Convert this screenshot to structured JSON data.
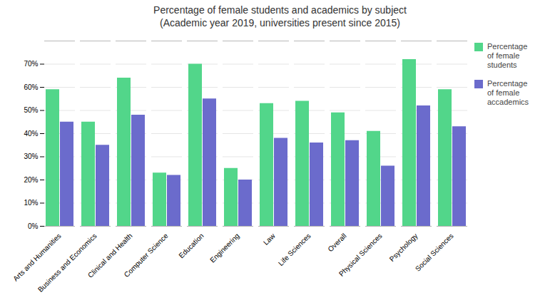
{
  "chart_data": {
    "type": "bar",
    "title": "Percentage of female students and academics by subject\n(Academic year 2019, universities present since 2015)",
    "categories": [
      "Arts and Humanities",
      "Business and Economics",
      "Clinical and Health",
      "Computer Science",
      "Education",
      "Engineering",
      "Law",
      "Life Sciences",
      "Overall",
      "Physical Sciences",
      "Psychology",
      "Social Sciences"
    ],
    "series": [
      {
        "name": "Percentage\nof female\nstudents",
        "color": "#52d68a",
        "values": [
          59,
          45,
          64,
          23,
          70,
          25,
          53,
          54,
          49,
          41,
          72,
          59
        ]
      },
      {
        "name": "Percentage\nof female\naccademics",
        "color": "#6b6bcc",
        "values": [
          45,
          35,
          48,
          22,
          55,
          20,
          38,
          36,
          37,
          26,
          52,
          43
        ]
      }
    ],
    "ylim": [
      0,
      80
    ],
    "yticks": [
      {
        "value": 0,
        "label": "0%"
      },
      {
        "value": 10,
        "label": "10%"
      },
      {
        "value": 20,
        "label": "20%"
      },
      {
        "value": 30,
        "label": "30%"
      },
      {
        "value": 40,
        "label": "40%"
      },
      {
        "value": 50,
        "label": "50%"
      },
      {
        "value": 60,
        "label": "60%"
      },
      {
        "value": 70,
        "label": "70%"
      }
    ],
    "grid": true,
    "legend": "right"
  }
}
